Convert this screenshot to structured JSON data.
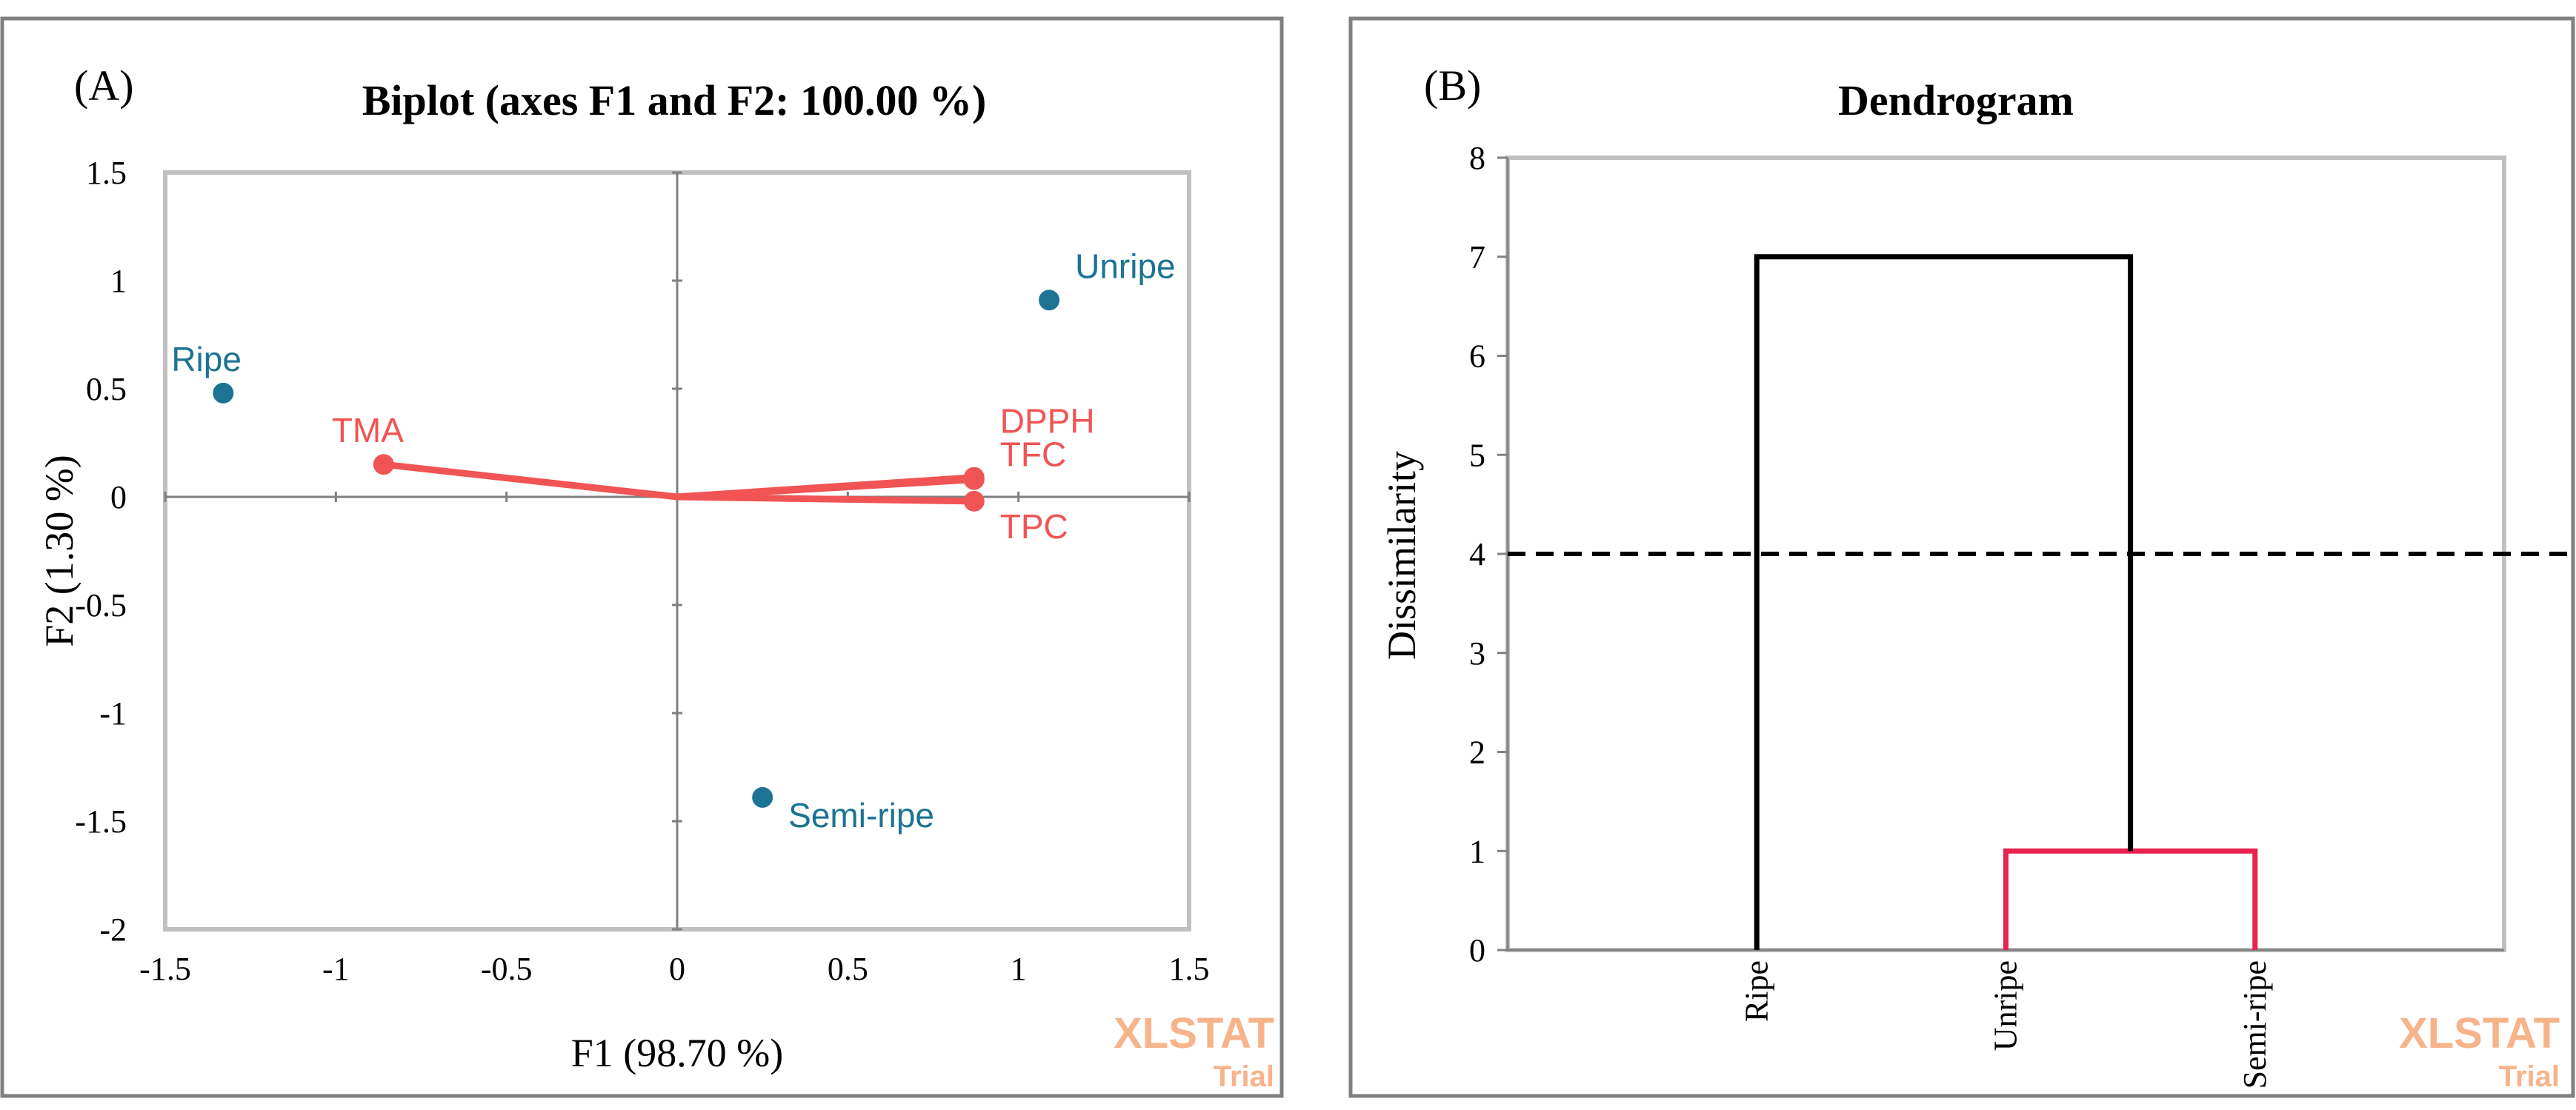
{
  "colors": {
    "observation": "#1c7394",
    "variable": "#f05454",
    "cluster_link": "#e8234f",
    "black": "#000000",
    "plot_border": "#c0c0c0",
    "panel_border": "#808080",
    "axis_zero": "#808080",
    "watermark": "#f7b38a"
  },
  "watermark": {
    "brand": "XLSTAT",
    "edition": "Trial"
  },
  "chart_data": [
    {
      "type": "scatter",
      "panel_label": "(A)",
      "title": "Biplot (axes F1 and F2: 100.00 %)",
      "xlabel": "F1 (98.70 %)",
      "ylabel": "F2 (1.30 %)",
      "xlim": [
        -1.5,
        1.5
      ],
      "ylim": [
        -2,
        1.5
      ],
      "x_ticks": [
        -1.5,
        -1,
        -0.5,
        0,
        0.5,
        1,
        1.5
      ],
      "y_ticks": [
        -2,
        -1.5,
        -1,
        -0.5,
        0,
        0.5,
        1,
        1.5
      ],
      "grid": false,
      "observations": [
        {
          "label": "Ripe",
          "x": -1.33,
          "y": 0.48
        },
        {
          "label": "Unripe",
          "x": 1.09,
          "y": 0.91
        },
        {
          "label": "Semi-ripe",
          "x": 0.25,
          "y": -1.39
        }
      ],
      "variables": [
        {
          "label": "TMA",
          "x": -0.86,
          "y": 0.15
        },
        {
          "label": "DPPH",
          "x": 0.87,
          "y": 0.09
        },
        {
          "label": "TFC",
          "x": 0.87,
          "y": 0.08
        },
        {
          "label": "TPC",
          "x": 0.87,
          "y": -0.02
        }
      ]
    },
    {
      "type": "dendrogram",
      "panel_label": "(B)",
      "title": "Dendrogram",
      "ylabel": "Dissimilarity",
      "ylim": [
        0,
        8
      ],
      "y_ticks": [
        0,
        1,
        2,
        3,
        4,
        5,
        6,
        7,
        8
      ],
      "leaves": [
        "Ripe",
        "Unripe",
        "Semi-ripe"
      ],
      "merges": [
        {
          "left": "Unripe",
          "right": "Semi-ripe",
          "height": 1,
          "color": "cluster_link"
        },
        {
          "left": "Ripe",
          "right": "Unripe+Semi-ripe",
          "height": 7,
          "color": "black"
        }
      ],
      "truncation_line": 4
    }
  ]
}
